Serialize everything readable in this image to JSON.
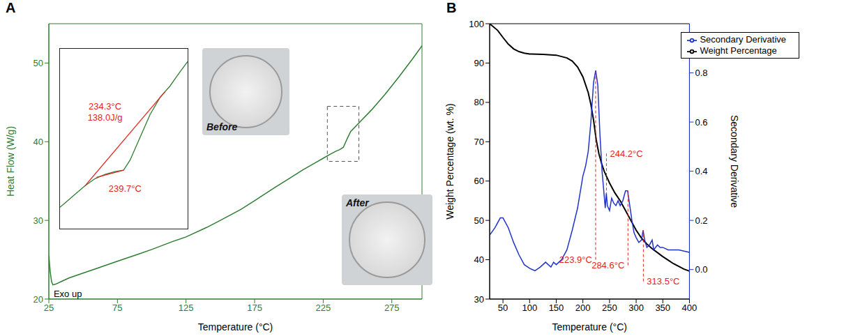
{
  "chart_data": [
    {
      "panel": "A",
      "type": "line",
      "color": "#2e7d32",
      "xlabel": "Temperature (°C)",
      "ylabel": "Heat Flow (W/g)",
      "xlim": [
        25,
        297
      ],
      "xticks": [
        25,
        75,
        125,
        175,
        225,
        275
      ],
      "ylim": [
        20,
        55
      ],
      "yticks": [
        20,
        30,
        40,
        50
      ],
      "series": [
        {
          "color": "#2e7d32",
          "x": [
            25,
            26,
            27,
            28,
            30,
            35,
            40,
            50,
            60,
            75,
            90,
            100,
            115,
            125,
            140,
            150,
            165,
            175,
            190,
            200,
            210,
            220,
            225,
            230,
            234.3,
            237,
            239.7,
            242,
            245,
            250,
            260,
            270,
            280,
            290,
            297
          ],
          "values": [
            25.5,
            23.5,
            22.2,
            21.8,
            21.9,
            22.3,
            22.7,
            23.3,
            23.9,
            24.8,
            25.7,
            26.3,
            27.3,
            27.9,
            29.1,
            30.0,
            31.4,
            32.5,
            34.2,
            35.3,
            36.4,
            37.4,
            37.9,
            38.4,
            38.8,
            39.0,
            39.3,
            40.2,
            41.3,
            42.2,
            44.0,
            46.0,
            48.2,
            50.5,
            52.2
          ]
        }
      ],
      "annotations": [
        {
          "text": "Exo up",
          "x": 26,
          "y": 20.7
        }
      ],
      "zoom_box": {
        "x": [
          228,
          251
        ],
        "y": [
          37.5,
          44.5
        ]
      }
    },
    {
      "type": "line",
      "tick_labels": false,
      "xlim": [
        227,
        252.5
      ],
      "ylim": [
        37,
        43.3
      ],
      "series": [
        {
          "color": "#2e7d32",
          "x": [
            227,
            228,
            230,
            232,
            234,
            236,
            238,
            239.7,
            241,
            243,
            245,
            247,
            249,
            251,
            252.5
          ],
          "values": [
            37.75,
            37.9,
            38.2,
            38.5,
            38.75,
            38.9,
            39.0,
            39.05,
            39.4,
            40.2,
            41.0,
            41.6,
            42.0,
            42.5,
            42.85
          ]
        },
        {
          "color": "#e0261f",
          "x": [
            232,
            248
          ],
          "values": [
            38.5,
            41.8
          ]
        },
        {
          "color": "#e0261f",
          "x": [
            234.3,
            239.7
          ],
          "values": [
            38.8,
            39.05
          ]
        }
      ],
      "annotations": [
        {
          "text": "234.3°C",
          "x": 236,
          "y": 41.3
        },
        {
          "text": "138.0J/g",
          "x": 236,
          "y": 40.9
        },
        {
          "text": "239.7°C",
          "x": 240,
          "y": 38.4
        }
      ]
    },
    {
      "panel": "B",
      "type": "line",
      "xlabel": "Temperature (°C)",
      "ylabel": "Weight Percentage (wt. %)",
      "y2label": "Secondary Derivative",
      "xlim": [
        25,
        400
      ],
      "xticks": [
        50,
        100,
        150,
        200,
        250,
        300,
        350,
        400
      ],
      "ylim": [
        30,
        100
      ],
      "yticks": [
        30,
        40,
        50,
        60,
        70,
        80,
        90,
        100
      ],
      "y2lim": [
        -0.12,
        1.0
      ],
      "y2ticks": [
        {
          "value": 0,
          "label": "0.0"
        },
        0.2,
        0.4,
        0.6,
        0.8
      ],
      "legend": "upper right",
      "series": [
        {
          "name": "Weight Percentage",
          "color": "#000000",
          "x": [
            25,
            40,
            50,
            60,
            70,
            80,
            90,
            100,
            125,
            150,
            170,
            180,
            190,
            200,
            210,
            215,
            220,
            225,
            230,
            235,
            240,
            245,
            250,
            260,
            270,
            280,
            290,
            300,
            310,
            320,
            330,
            340,
            350,
            360,
            370,
            380,
            390,
            400
          ],
          "values": [
            100,
            98.3,
            96.5,
            94.8,
            93.6,
            92.9,
            92.5,
            92.3,
            92.2,
            92.0,
            91.3,
            90.5,
            89.0,
            86.5,
            82.5,
            79.5,
            75.5,
            70.5,
            67.0,
            64.5,
            62.5,
            61.0,
            59.5,
            57.0,
            55.0,
            52.5,
            50.0,
            47.5,
            45.5,
            44.0,
            42.8,
            41.8,
            40.8,
            39.9,
            39.0,
            38.3,
            37.6,
            37.1
          ]
        },
        {
          "name": "Secondary Derivative",
          "color": "#2233cc",
          "axis": "y2",
          "x": [
            25,
            35,
            45,
            50,
            60,
            70,
            80,
            90,
            100,
            110,
            120,
            130,
            135,
            140,
            145,
            150,
            160,
            170,
            180,
            190,
            200,
            205,
            210,
            215,
            220,
            224,
            228,
            232,
            236,
            240,
            242,
            244,
            246,
            250,
            254,
            258,
            262,
            266,
            270,
            275,
            280,
            284,
            288,
            292,
            296,
            300,
            305,
            310,
            313,
            316,
            320,
            325,
            330,
            333,
            340,
            345,
            350,
            360,
            370,
            380,
            390,
            400
          ],
          "values": [
            0.14,
            0.17,
            0.21,
            0.21,
            0.17,
            0.11,
            0.06,
            0.02,
            0.005,
            -0.005,
            0.01,
            0.03,
            0.02,
            0.01,
            0.03,
            0.02,
            0.04,
            0.08,
            0.16,
            0.25,
            0.38,
            0.42,
            0.48,
            0.6,
            0.76,
            0.81,
            0.75,
            0.55,
            0.4,
            0.3,
            0.25,
            0.31,
            0.26,
            0.24,
            0.29,
            0.27,
            0.26,
            0.28,
            0.26,
            0.28,
            0.32,
            0.32,
            0.26,
            0.2,
            0.15,
            0.13,
            0.11,
            0.12,
            0.16,
            0.12,
            0.09,
            0.1,
            0.12,
            0.08,
            0.1,
            0.09,
            0.09,
            0.08,
            0.08,
            0.08,
            0.075,
            0.07
          ]
        }
      ],
      "annotations": [
        {
          "text": "223.9°C",
          "x": 223.9,
          "y": 40,
          "y2": 0.81
        },
        {
          "text": "244.2°C",
          "x": 244.2,
          "y": 67,
          "y2": 0.31
        },
        {
          "text": "284.6°C",
          "x": 284.6,
          "y": 38.6,
          "y2": 0.32
        },
        {
          "text": "313.5°C",
          "x": 313.5,
          "y": 34.5,
          "y2": 0.16
        }
      ]
    }
  ],
  "photos": [
    {
      "label": "Before"
    },
    {
      "label": "After"
    }
  ]
}
